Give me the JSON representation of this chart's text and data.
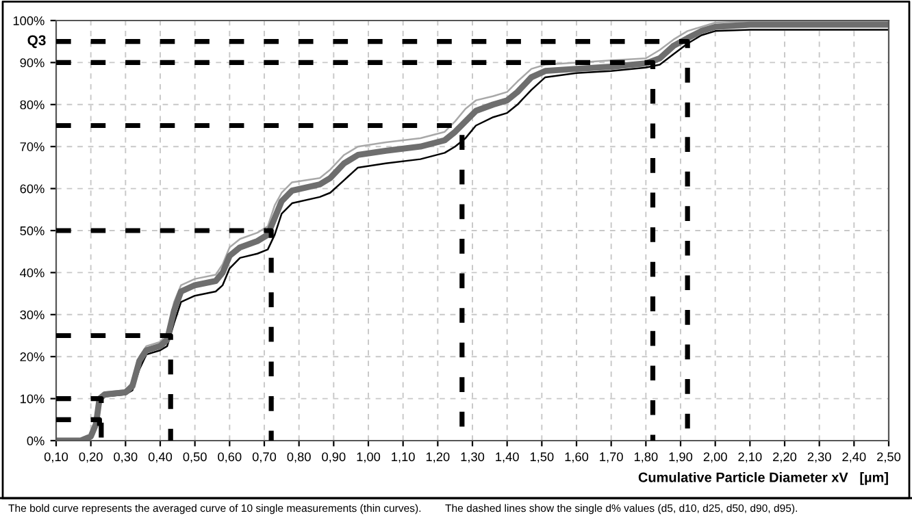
{
  "chart_data": {
    "type": "line",
    "ylabel": "Q3",
    "xlabel": "Cumulative Particle Diameter xV   [µm]",
    "annotations": [
      "The bold curve represents the averaged curve of 10 single measurements (thin curves).",
      "The dashed lines show the single d% values (d5, d10, d25, d50, d90, d95)."
    ],
    "x": [
      0.1,
      0.17,
      0.2,
      0.215,
      0.225,
      0.24,
      0.3,
      0.32,
      0.34,
      0.36,
      0.4,
      0.42,
      0.44,
      0.46,
      0.5,
      0.56,
      0.58,
      0.6,
      0.63,
      0.68,
      0.71,
      0.73,
      0.75,
      0.78,
      0.86,
      0.89,
      0.93,
      0.97,
      1.05,
      1.15,
      1.22,
      1.25,
      1.28,
      1.31,
      1.36,
      1.4,
      1.43,
      1.47,
      1.51,
      1.6,
      1.7,
      1.8,
      1.84,
      1.88,
      1.92,
      1.96,
      2.0,
      2.1,
      2.5
    ],
    "series": [
      {
        "color": "#6e6e6e",
        "values": [
          0,
          0,
          1,
          4,
          10,
          11,
          11.5,
          13,
          19,
          21.5,
          22.5,
          24,
          31,
          35.5,
          37,
          38,
          40,
          44,
          46,
          47.5,
          49,
          53,
          57,
          59.5,
          61,
          62.5,
          66,
          68,
          69,
          70,
          71.5,
          73.5,
          76,
          78.5,
          80,
          81,
          83,
          86.5,
          88,
          88.5,
          89,
          89.8,
          91,
          94,
          95.8,
          97.5,
          98.5,
          99,
          99
        ]
      },
      {
        "color": "#a8a8a8",
        "values": [
          0,
          0,
          1.5,
          5,
          10.5,
          11.5,
          12,
          14,
          20,
          22.5,
          23.5,
          25.5,
          33,
          37,
          38.5,
          39.5,
          42,
          46,
          48,
          49.5,
          51,
          56,
          59,
          61.5,
          62.5,
          64.5,
          68,
          70,
          71,
          72,
          73.5,
          76,
          79,
          81,
          82,
          83,
          85.5,
          88.5,
          89.5,
          90,
          90.5,
          91,
          93,
          95.5,
          97.5,
          98.5,
          99.5,
          99.8,
          99.8
        ]
      },
      {
        "color": "#000000",
        "values": [
          0,
          0,
          0.5,
          3,
          9,
          10.5,
          11,
          12,
          17,
          20.5,
          21.5,
          22.5,
          28,
          33,
          34.5,
          35.5,
          37,
          41,
          43.5,
          44.5,
          45.5,
          49,
          54,
          56.5,
          58,
          59,
          62,
          65,
          66,
          67,
          68.5,
          70,
          72,
          75,
          77,
          78,
          80,
          83.5,
          86.5,
          87.5,
          88,
          88.8,
          89.5,
          92,
          94.5,
          96.5,
          97.5,
          97.8,
          97.8
        ]
      },
      {
        "color": "#000000",
        "line_style": "dashed",
        "x": [
          0.1,
          0.225,
          0.225
        ],
        "values": [
          5,
          5,
          0
        ]
      },
      {
        "color": "#000000",
        "line_style": "dashed",
        "x": [
          0.1,
          0.23,
          0.23
        ],
        "values": [
          10,
          10,
          0
        ]
      },
      {
        "color": "#000000",
        "line_style": "dashed",
        "x": [
          0.1,
          0.43,
          0.43
        ],
        "values": [
          25,
          25,
          0
        ]
      },
      {
        "color": "#000000",
        "line_style": "dashed",
        "x": [
          0.1,
          0.72,
          0.72
        ],
        "values": [
          50,
          50,
          0
        ]
      },
      {
        "color": "#000000",
        "line_style": "dashed",
        "x": [
          0.1,
          1.27,
          1.27
        ],
        "values": [
          75,
          75,
          0
        ]
      },
      {
        "color": "#000000",
        "line_style": "dashed",
        "x": [
          0.1,
          1.82,
          1.82
        ],
        "values": [
          90,
          90,
          0
        ]
      },
      {
        "color": "#000000",
        "line_style": "dashed",
        "x": [
          0.1,
          1.92,
          1.92
        ],
        "values": [
          95,
          95,
          0
        ]
      }
    ],
    "xlim": [
      0.1,
      2.5
    ],
    "xticks": [
      {
        "value": 0.1,
        "label": "0,10"
      },
      {
        "value": 0.2,
        "label": "0,20"
      },
      {
        "value": 0.3,
        "label": "0,30"
      },
      {
        "value": 0.4,
        "label": "0,40"
      },
      {
        "value": 0.5,
        "label": "0,50"
      },
      {
        "value": 0.6,
        "label": "0,60"
      },
      {
        "value": 0.7,
        "label": "0,70"
      },
      {
        "value": 0.8,
        "label": "0,80"
      },
      {
        "value": 0.9,
        "label": "0,90"
      },
      {
        "value": 1.0,
        "label": "1,00"
      },
      {
        "value": 1.1,
        "label": "1,10"
      },
      {
        "value": 1.2,
        "label": "1,20"
      },
      {
        "value": 1.3,
        "label": "1,30"
      },
      {
        "value": 1.4,
        "label": "1,40"
      },
      {
        "value": 1.5,
        "label": "1,50"
      },
      {
        "value": 1.6,
        "label": "1,60"
      },
      {
        "value": 1.7,
        "label": "1,70"
      },
      {
        "value": 1.8,
        "label": "1,80"
      },
      {
        "value": 1.9,
        "label": "1,90"
      },
      {
        "value": 2.0,
        "label": "2,00"
      },
      {
        "value": 2.1,
        "label": "2,10"
      },
      {
        "value": 2.2,
        "label": "2,20"
      },
      {
        "value": 2.3,
        "label": "2,30"
      },
      {
        "value": 2.4,
        "label": "2,40"
      },
      {
        "value": 2.5,
        "label": "2,50"
      }
    ],
    "ylim": [
      0,
      100
    ],
    "yticks": [
      {
        "value": 0,
        "label": "0%"
      },
      {
        "value": 10,
        "label": "10%"
      },
      {
        "value": 20,
        "label": "20%"
      },
      {
        "value": 30,
        "label": "30%"
      },
      {
        "value": 40,
        "label": "40%"
      },
      {
        "value": 50,
        "label": "50%"
      },
      {
        "value": 60,
        "label": "60%"
      },
      {
        "value": 70,
        "label": "70%"
      },
      {
        "value": 80,
        "label": "80%"
      },
      {
        "value": 90,
        "label": "90%"
      },
      {
        "value": 100,
        "label": "100%"
      }
    ],
    "grid": true,
    "legend": false
  }
}
